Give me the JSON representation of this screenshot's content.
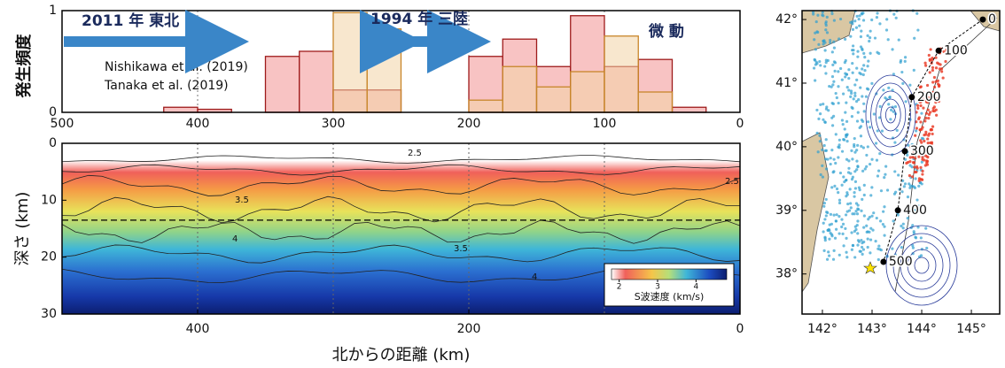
{
  "chart_data": [
    {
      "type": "histogram",
      "ylabel": "発生頻度",
      "xlim": [
        500,
        0
      ],
      "ylim": [
        0,
        1
      ],
      "xticks": [
        500,
        400,
        300,
        200,
        100,
        0
      ],
      "yticks": [
        0,
        1
      ],
      "grid": true,
      "bins": [
        425,
        400,
        375,
        350,
        325,
        300,
        275,
        250,
        225,
        200,
        175,
        150,
        125,
        100,
        75,
        50,
        25,
        0
      ],
      "series": [
        {
          "name": "Nishikawa et al. (2019)",
          "color": "#9e1b1b",
          "fill": "#f7b9b9",
          "values": [
            0.05,
            0.03,
            0,
            0.55,
            0.6,
            0.22,
            0.22,
            0,
            0,
            0.55,
            0.72,
            0.45,
            0.95,
            0.45,
            0.52,
            0.05,
            0
          ]
        },
        {
          "name": "Tanaka et al. (2019)",
          "color": "#c8862a",
          "fill": "#f3d3a6",
          "values": [
            0,
            0,
            0,
            0,
            0,
            0.98,
            0.82,
            0,
            0,
            0.12,
            0.45,
            0.25,
            0.4,
            0.75,
            0.2,
            0,
            0
          ]
        }
      ],
      "annotations": {
        "event_2011": "2011 年 東北",
        "event_1994": "1994 年 三陸",
        "tremor": "微 動"
      }
    },
    {
      "type": "section",
      "xlabel": "北からの距離 (km)",
      "ylabel": "深さ (km)",
      "xlim": [
        500,
        0
      ],
      "ylim": [
        30,
        0
      ],
      "xticks": [
        400,
        200,
        0
      ],
      "yticks": [
        0,
        10,
        20,
        30
      ],
      "guides": [
        400,
        300,
        200,
        100
      ],
      "reference_depth": 13.5,
      "contour_labels": [
        2.5,
        2.5,
        3.5,
        3.5,
        4,
        4
      ],
      "colorbar": {
        "label": "S波速度 (km/s)",
        "lim": [
          1.8,
          4.8
        ],
        "ticks": [
          2,
          3,
          4
        ]
      }
    },
    {
      "type": "map",
      "xlim": [
        141.59,
        145.57
      ],
      "ylim": [
        37.37,
        42.14
      ],
      "xticks": [
        {
          "value": 142,
          "label": "142°"
        },
        {
          "value": 143,
          "label": "143°"
        },
        {
          "value": 144,
          "label": "144°"
        },
        {
          "value": 145,
          "label": "145°"
        }
      ],
      "yticks": [
        {
          "value": 38,
          "label": "38°"
        },
        {
          "value": 39,
          "label": "39°"
        },
        {
          "value": 40,
          "label": "40°"
        },
        {
          "value": 41,
          "label": "41°"
        },
        {
          "value": 42,
          "label": "42°"
        }
      ],
      "points": {
        "x": [
          145.23,
          144.34,
          143.8,
          143.66,
          143.52,
          143.23
        ],
        "y": [
          42.0,
          41.51,
          40.78,
          39.93,
          39.0,
          38.19
        ],
        "labels": [
          0,
          100,
          200,
          300,
          400,
          500
        ]
      }
    }
  ]
}
